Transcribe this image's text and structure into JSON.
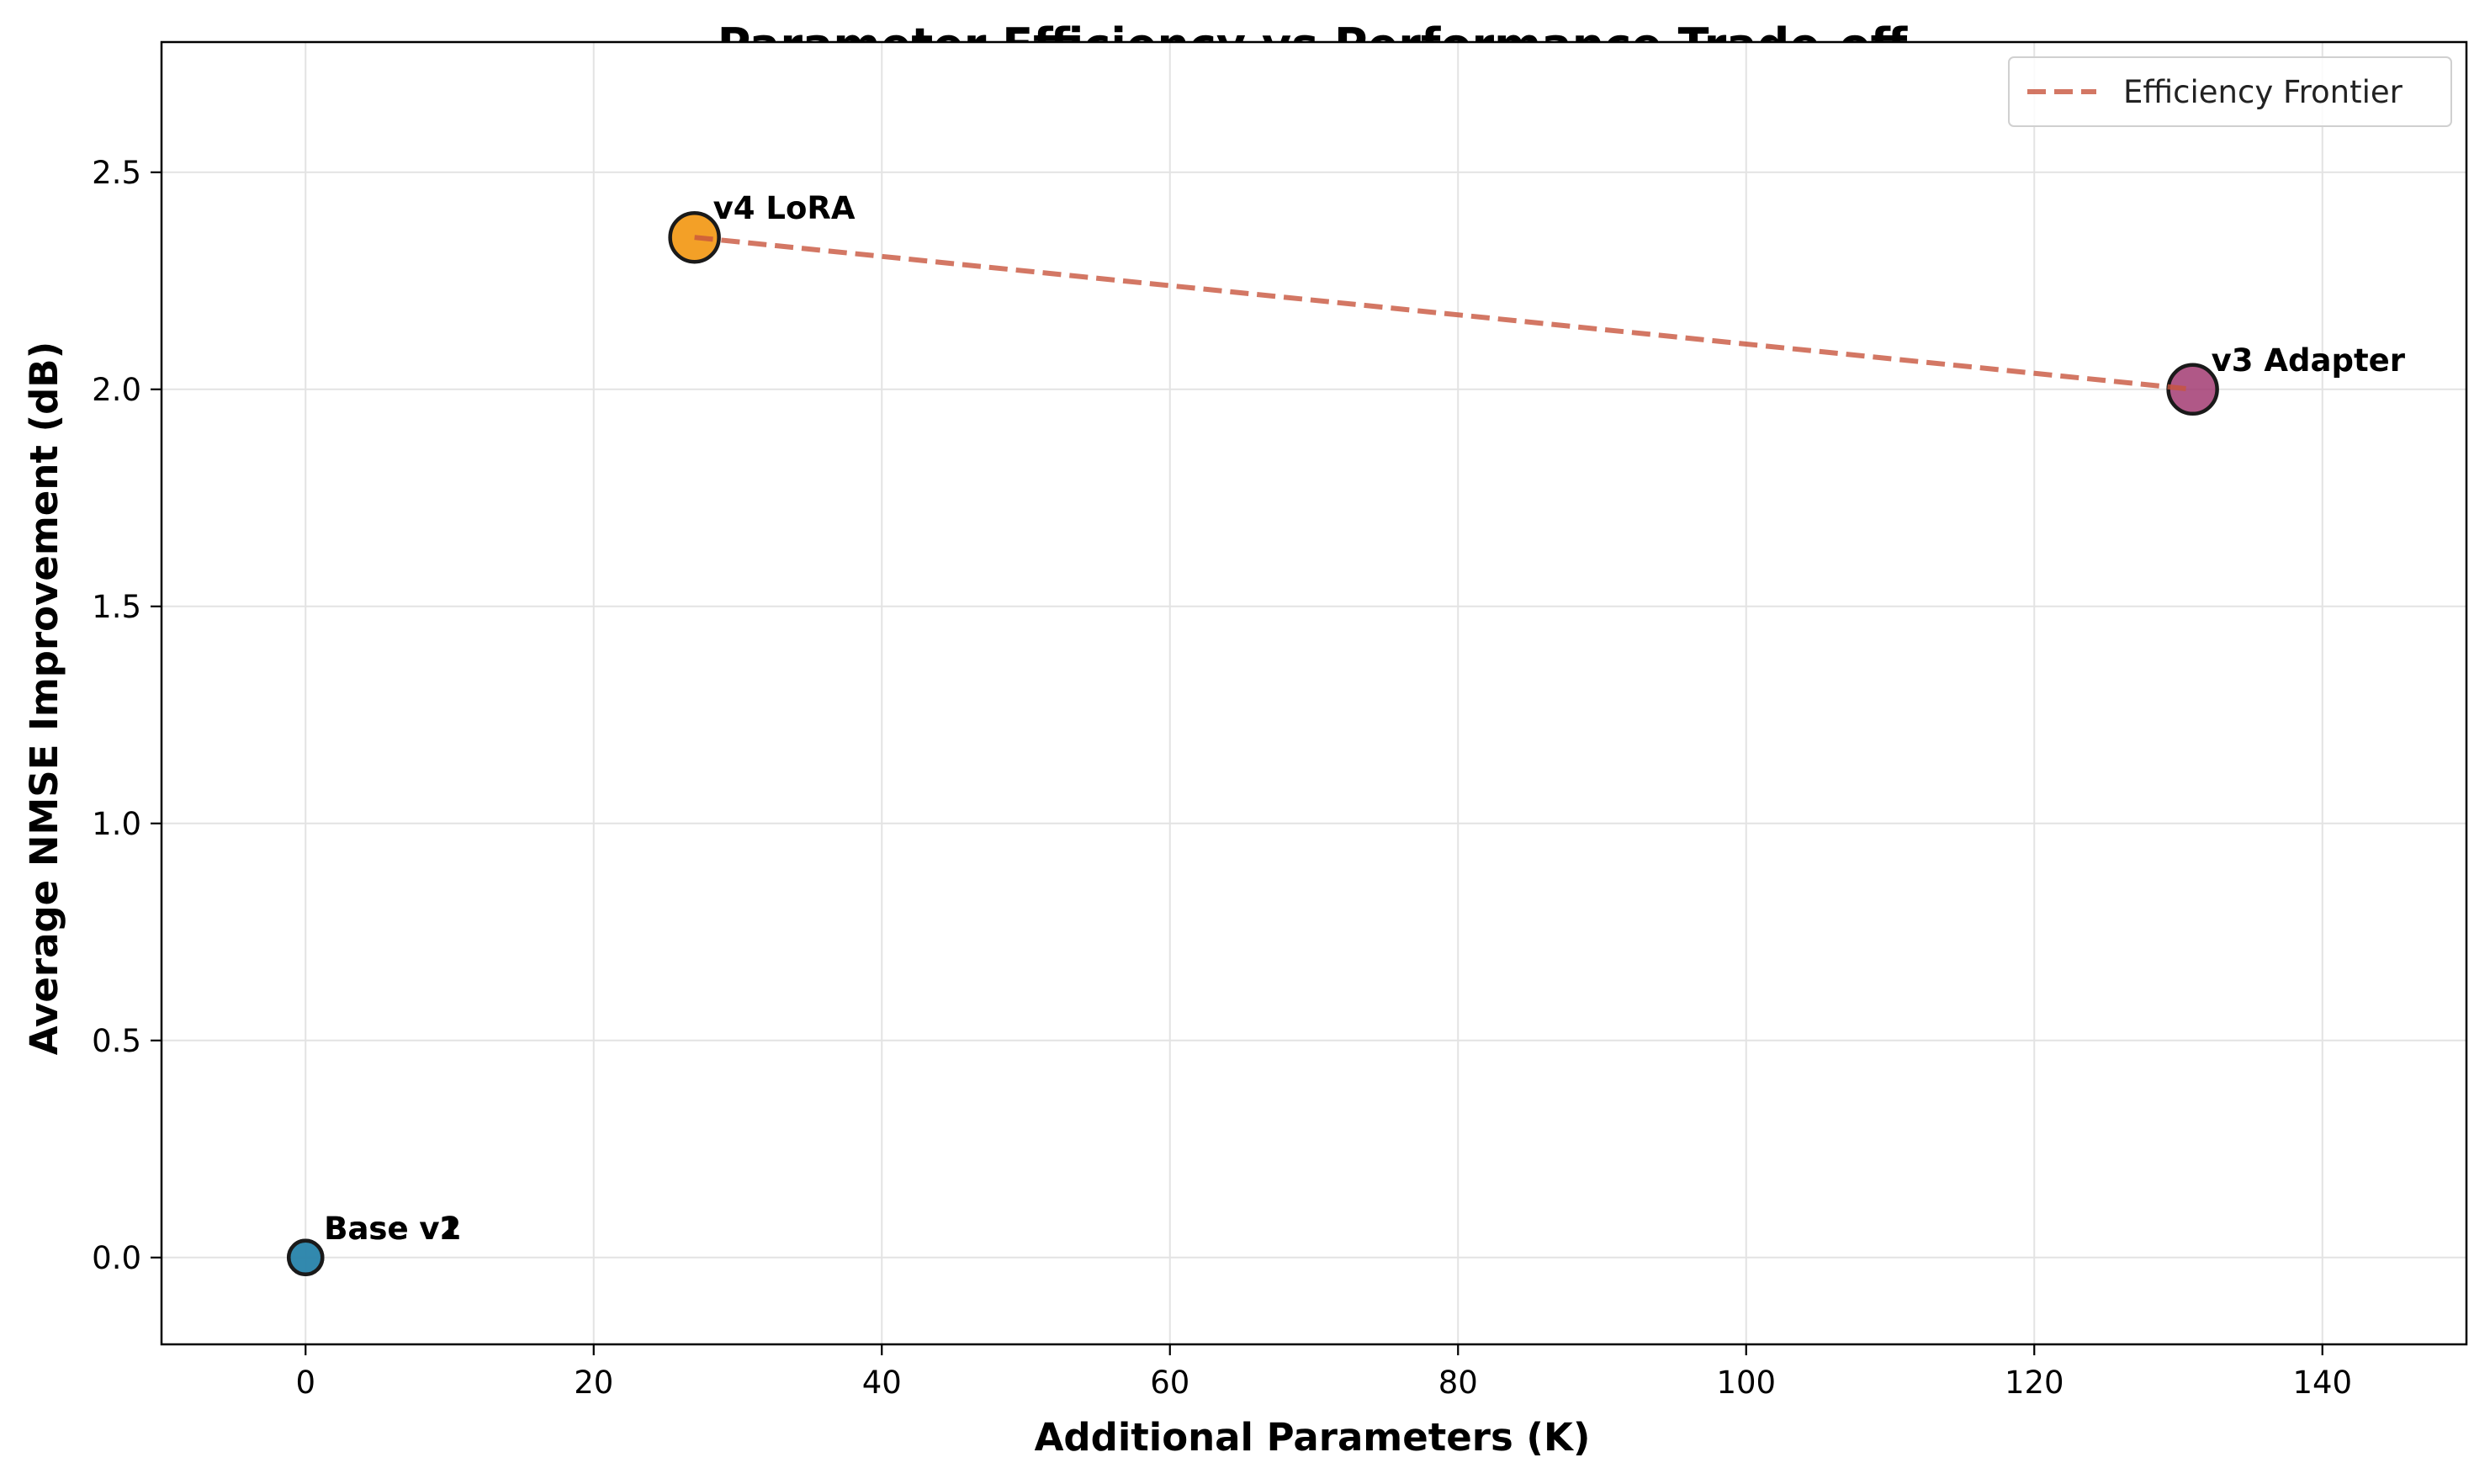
{
  "chart_data": {
    "type": "scatter",
    "title": "Parameter Efficiency vs Performance Trade-off",
    "xlabel": "Additional Parameters (K)",
    "ylabel": "Average NMSE Improvement (dB)",
    "xlim": [
      -10,
      150
    ],
    "ylim": [
      -0.2,
      2.8
    ],
    "xticks": [
      0,
      20,
      40,
      60,
      80,
      100,
      120,
      140
    ],
    "yticks": [
      0.0,
      0.5,
      1.0,
      1.5,
      2.0,
      2.5
    ],
    "xtick_labels": [
      "0",
      "20",
      "40",
      "60",
      "80",
      "100",
      "120",
      "140"
    ],
    "ytick_labels": [
      "0.0",
      "0.5",
      "1.0",
      "1.5",
      "2.0",
      "2.5"
    ],
    "grid": true,
    "legend_position": "top-right",
    "points": [
      {
        "label": "Base v1",
        "x": 0,
        "y": 0.0,
        "color": "#2e86ab",
        "size": "small"
      },
      {
        "label": "Base v2",
        "x": 0,
        "y": 0.0,
        "color": "#2e86ab",
        "size": "small"
      },
      {
        "label": "v4 LoRA",
        "x": 27,
        "y": 2.35,
        "color": "#f18f01",
        "size": "large"
      },
      {
        "label": "v3 Adapter",
        "x": 131,
        "y": 2.0,
        "color": "#a23b72",
        "size": "large"
      }
    ],
    "frontier": {
      "name": "Efficiency Frontier",
      "color": "#c8553d",
      "x": [
        27,
        131
      ],
      "y": [
        2.35,
        2.0
      ]
    }
  }
}
